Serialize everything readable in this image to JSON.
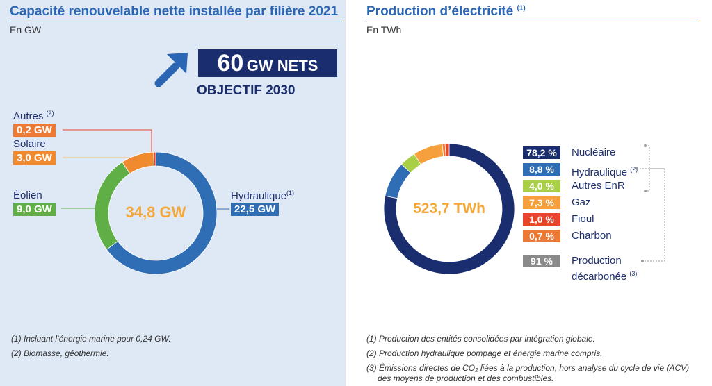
{
  "left": {
    "title": "Capacité renouvelable nette installée par filière 2021",
    "unit": "En GW",
    "objective": {
      "value": "60",
      "value_unit": "GW NETS",
      "label": "OBJECTIF 2030"
    },
    "center": "34,8 GW",
    "labels": {
      "autres": {
        "name": "Autres",
        "sup": "(2)",
        "value": "0,2 GW"
      },
      "solaire": {
        "name": "Solaire",
        "sup": "",
        "value": "3,0 GW"
      },
      "eolien": {
        "name": "Éolien",
        "sup": "",
        "value": "9,0 GW"
      },
      "hydraulique": {
        "name": "Hydraulique",
        "sup": "(1)",
        "value": "22,5 GW"
      }
    },
    "notes": [
      "(1) Incluant l’énergie marine pour 0,24 GW.",
      "(2) Biomasse, géothermie."
    ]
  },
  "right": {
    "title": "Production d’électricité",
    "title_sup": "(1)",
    "unit": "En TWh",
    "center": "523,7 TWh",
    "legend": [
      {
        "pct": "78,2 %",
        "name": "Nucléaire",
        "sup": ""
      },
      {
        "pct": "8,8 %",
        "name": "Hydraulique",
        "sup": "(2)"
      },
      {
        "pct": "4,0 %",
        "name": "Autres EnR",
        "sup": ""
      },
      {
        "pct": "7,3 %",
        "name": "Gaz",
        "sup": ""
      },
      {
        "pct": "1,0 %",
        "name": "Fioul",
        "sup": ""
      },
      {
        "pct": "0,7 %",
        "name": "Charbon",
        "sup": ""
      }
    ],
    "decarbonated": {
      "pct": "91 %",
      "line1": "Production",
      "line2": "décarbonée",
      "sup": "(3)"
    },
    "notes": [
      "(1) Production des entités consolidées par intégration globale.",
      "(2) Production hydraulique pompage et énergie marine compris.",
      "(3) Émissions directes de CO₂ liées à la production, hors analyse du cycle de vie (ACV)",
      "des moyens de production et des combustibles."
    ]
  },
  "colors": {
    "hydraulique_left": "#2f6db5",
    "eolien": "#5fae46",
    "solaire": "#f08a2e",
    "autres_left": "#e8452c",
    "nucleaire": "#1a2d6e",
    "hydraulique_right": "#2f6db5",
    "autres_enr": "#a8cf45",
    "gaz": "#f5a03c",
    "fioul": "#e8452c",
    "charbon": "#ec7a35",
    "decarbonee": "#8a8a8a",
    "center_text": "#f5a83a"
  },
  "chart_data": [
    {
      "type": "pie",
      "title": "Capacité renouvelable nette installée par filière 2021",
      "unit": "GW",
      "total": 34.8,
      "categories": [
        "Hydraulique",
        "Éolien",
        "Solaire",
        "Autres"
      ],
      "values": [
        22.5,
        9.0,
        3.0,
        0.2
      ],
      "colors": [
        "#2f6db5",
        "#5fae46",
        "#f08a2e",
        "#e8452c"
      ]
    },
    {
      "type": "pie",
      "title": "Production d’électricité",
      "unit": "TWh",
      "total": 523.7,
      "categories": [
        "Nucléaire",
        "Hydraulique",
        "Autres EnR",
        "Gaz",
        "Fioul",
        "Charbon"
      ],
      "values": [
        78.2,
        8.8,
        4.0,
        7.3,
        1.0,
        0.7
      ],
      "colors": [
        "#1a2d6e",
        "#2f6db5",
        "#a8cf45",
        "#f5a03c",
        "#e8452c",
        "#ec7a35"
      ]
    }
  ]
}
